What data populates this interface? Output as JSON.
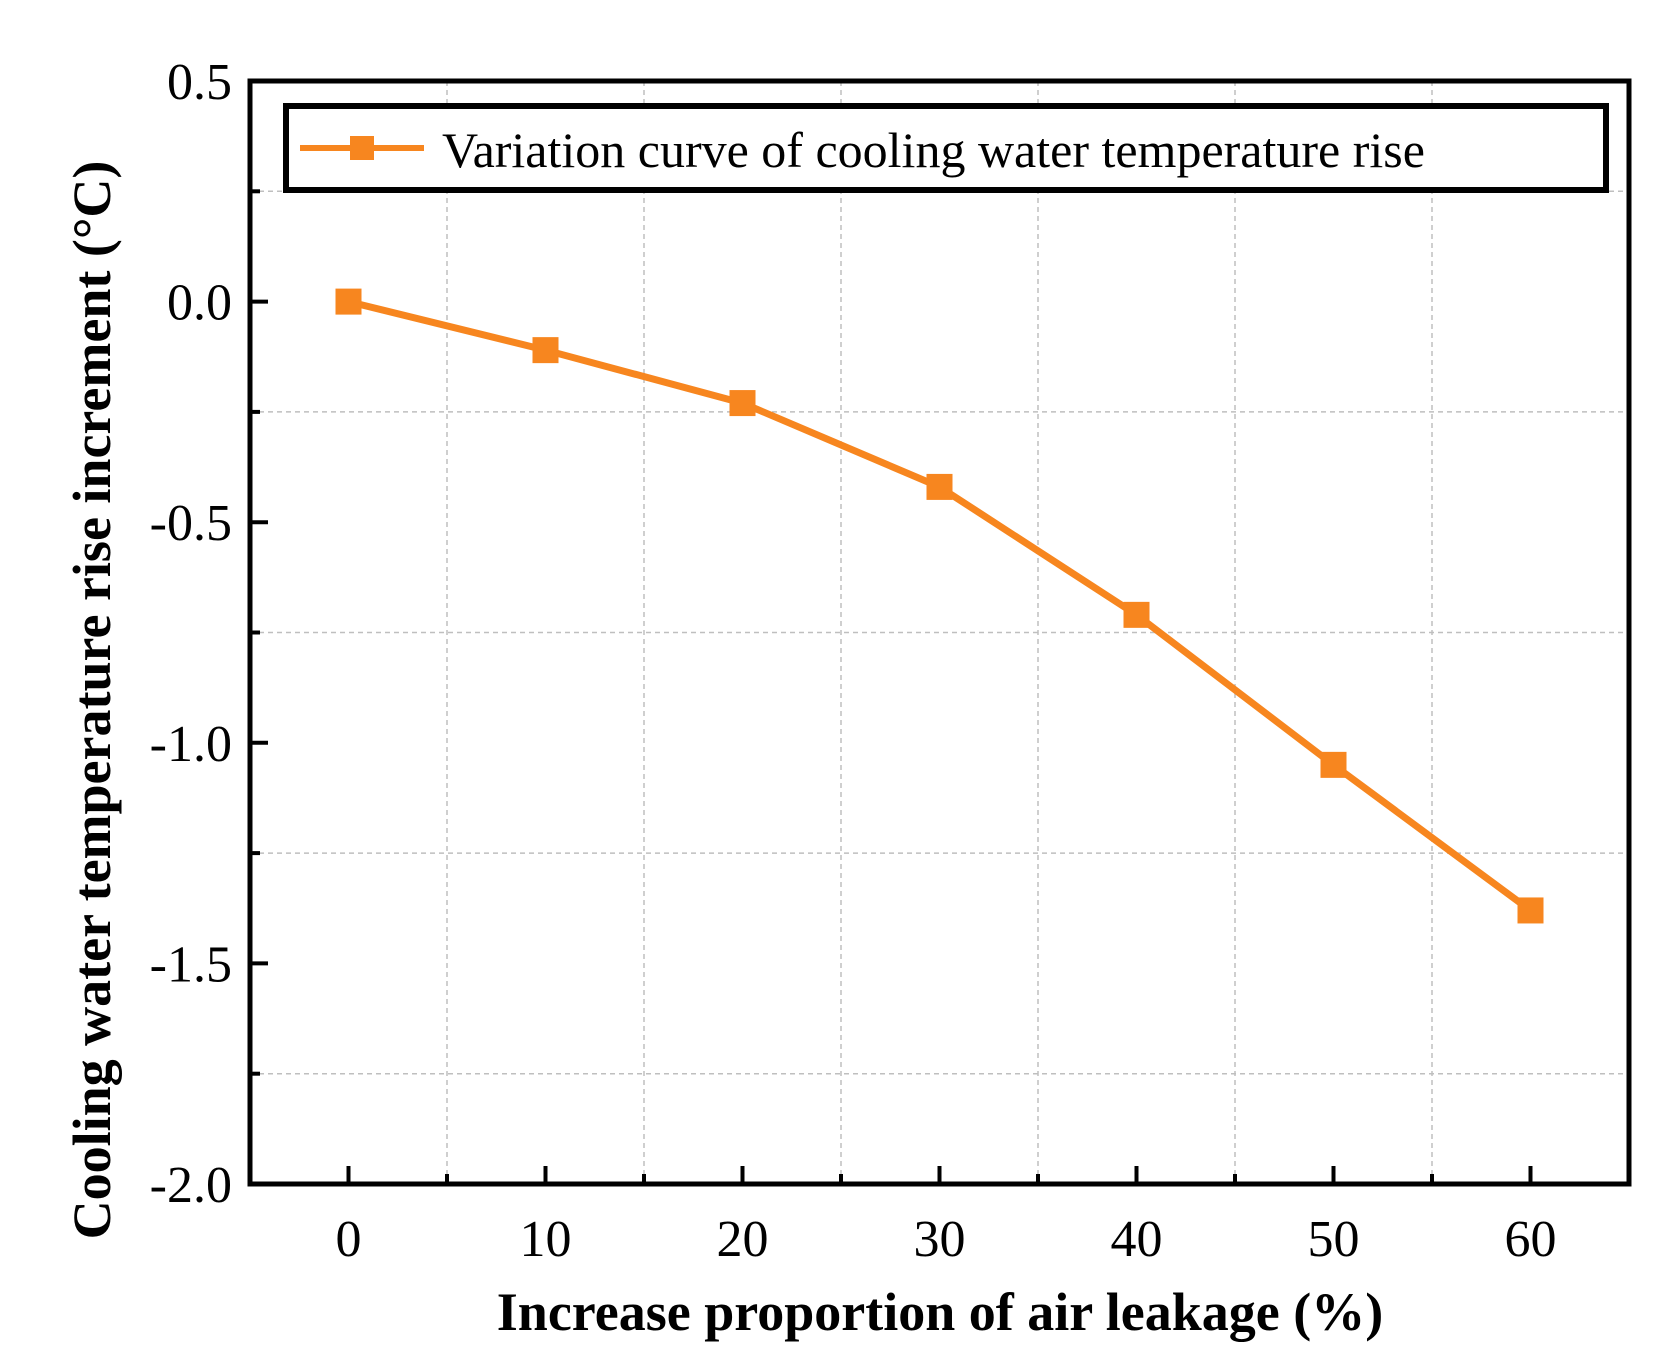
{
  "chart_data": {
    "type": "line",
    "title": "",
    "xlabel": "Increase proportion of air leakage (%)",
    "ylabel": "Cooling water temperature rise increment (°C)",
    "xlim": [
      -5,
      65
    ],
    "ylim": [
      -2.0,
      0.5
    ],
    "x_ticks": [
      0,
      10,
      20,
      30,
      40,
      50,
      60
    ],
    "x_tick_labels": [
      "0",
      "10",
      "20",
      "30",
      "40",
      "50",
      "60"
    ],
    "y_ticks": [
      0.5,
      0.0,
      -0.5,
      -1.0,
      -1.5,
      -2.0
    ],
    "y_tick_labels": [
      "0.5",
      "0.0",
      "-0.5",
      "-1.0",
      "-1.5",
      "-2.0"
    ],
    "grid": true,
    "legend_position": "top",
    "series": [
      {
        "name": "Variation curve of  cooling water temperature rise",
        "color": "#f7861f",
        "marker": "square",
        "x": [
          0,
          10,
          20,
          30,
          40,
          50,
          60
        ],
        "y": [
          0.0,
          -0.11,
          -0.23,
          -0.42,
          -0.71,
          -1.05,
          -1.38
        ]
      }
    ]
  }
}
